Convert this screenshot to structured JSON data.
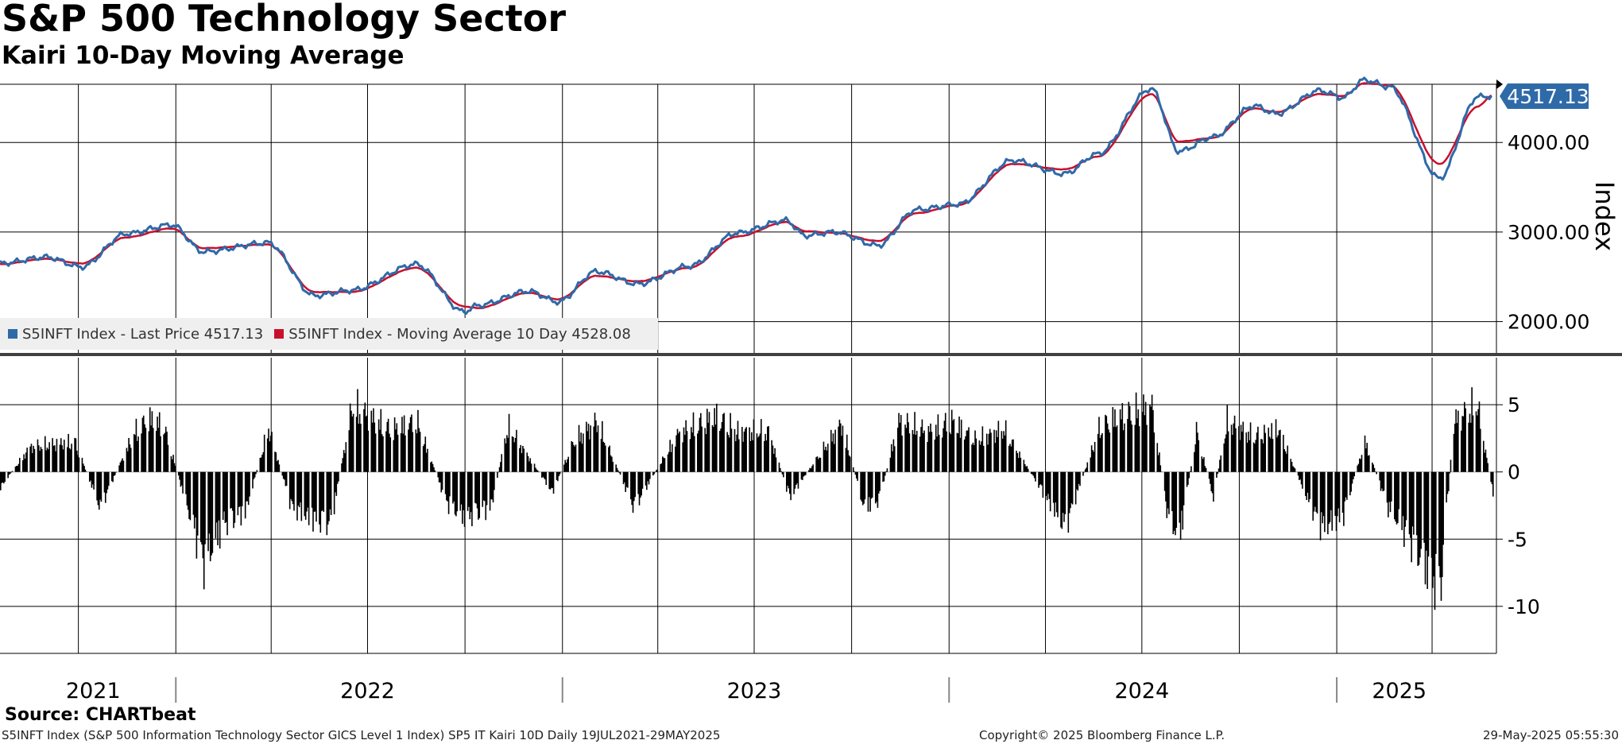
{
  "header": {
    "title": "S&P 500 Technology Sector",
    "subtitle": "Kairi 10-Day Moving Average"
  },
  "legend": {
    "items": [
      {
        "label": "S5INFT Index - Last Price 4517.13",
        "color": "#2f6aa8"
      },
      {
        "label": "S5INFT Index - Moving Average 10 Day 4528.08",
        "color": "#c8102e"
      }
    ]
  },
  "footer": {
    "source": "Source: CHARTbeat",
    "description": "S5INFT Index (S&P 500 Information Technology Sector GICS Level 1 Index) SP5 IT Kairi 10D  Daily 19JUL2021-29MAY2025",
    "copyright": "Copyright© 2025 Bloomberg Finance L.P.",
    "timestamp": "29-May-2025 05:55:30"
  },
  "colors": {
    "price_line": "#2f6aa8",
    "ma_line": "#c8102e",
    "kairi_bars": "#000000",
    "last_price_badge": "#2f6aa8"
  },
  "chart_data": [
    {
      "type": "line",
      "title": "",
      "ylabel": "Index",
      "ylim": [
        1650,
        4650
      ],
      "yticks": [
        2000,
        3000,
        4000
      ],
      "ytick_labels": [
        "2000.00",
        "3000.00",
        "4000.00"
      ],
      "last_price_label": "4517.13",
      "x_labels": [
        "2021",
        "2022",
        "2023",
        "2024",
        "2025"
      ],
      "grid": true,
      "legend_position": "bottom-left",
      "series": [
        {
          "name": "S5INFT Index - Last Price 4517.13",
          "x": [
            "2021-07-19",
            "2021-09-01",
            "2021-10-04",
            "2021-11-15",
            "2021-12-28",
            "2022-01-27",
            "2022-03-29",
            "2022-05-12",
            "2022-06-16",
            "2022-08-16",
            "2022-09-30",
            "2022-10-13",
            "2022-11-30",
            "2022-12-28",
            "2023-02-02",
            "2023-03-13",
            "2023-05-01",
            "2023-06-15",
            "2023-07-31",
            "2023-08-18",
            "2023-09-15",
            "2023-10-26",
            "2023-12-01",
            "2024-01-10",
            "2024-03-01",
            "2024-04-19",
            "2024-05-20",
            "2024-07-10",
            "2024-08-05",
            "2024-09-06",
            "2024-10-15",
            "2024-11-05",
            "2024-12-16",
            "2025-01-07",
            "2025-01-27",
            "2025-02-20",
            "2025-04-08",
            "2025-05-14",
            "2025-05-28"
          ],
          "y": [
            2650,
            2720,
            2610,
            2980,
            3080,
            2780,
            2880,
            2290,
            2350,
            2640,
            2110,
            2180,
            2340,
            2220,
            2560,
            2420,
            2620,
            2990,
            3130,
            2960,
            3000,
            2850,
            3250,
            3310,
            3800,
            3650,
            3870,
            4600,
            3900,
            4060,
            4410,
            4320,
            4580,
            4500,
            4700,
            4620,
            3600,
            4510,
            4517
          ]
        },
        {
          "name": "S5INFT Index - Moving Average 10 Day 4528.08",
          "x": [
            "2021-07-19",
            "2021-09-01",
            "2021-10-04",
            "2021-11-15",
            "2021-12-28",
            "2022-01-27",
            "2022-03-29",
            "2022-05-12",
            "2022-06-16",
            "2022-08-16",
            "2022-09-30",
            "2022-10-13",
            "2022-11-30",
            "2022-12-28",
            "2023-02-02",
            "2023-03-13",
            "2023-05-01",
            "2023-06-15",
            "2023-07-31",
            "2023-08-18",
            "2023-09-15",
            "2023-10-26",
            "2023-12-01",
            "2024-01-10",
            "2024-03-01",
            "2024-04-19",
            "2024-05-20",
            "2024-07-10",
            "2024-08-05",
            "2024-09-06",
            "2024-10-15",
            "2024-11-05",
            "2024-12-16",
            "2025-01-07",
            "2025-01-27",
            "2025-02-20",
            "2025-04-08",
            "2025-05-14",
            "2025-05-28"
          ],
          "y": [
            2640,
            2700,
            2650,
            2940,
            3040,
            2820,
            2860,
            2330,
            2330,
            2600,
            2170,
            2150,
            2320,
            2250,
            2510,
            2450,
            2600,
            2950,
            3110,
            3010,
            2990,
            2900,
            3210,
            3300,
            3760,
            3700,
            3840,
            4540,
            4010,
            4050,
            4380,
            4340,
            4540,
            4520,
            4660,
            4640,
            3760,
            4400,
            4528
          ]
        }
      ]
    },
    {
      "type": "bar",
      "title": "",
      "ylabel": "",
      "ylim": [
        -13.5,
        8.5
      ],
      "yticks": [
        -10,
        -5,
        0,
        5
      ],
      "ytick_labels": [
        "-10",
        "-5",
        "0",
        "5"
      ],
      "grid": true,
      "series": [
        {
          "name": "",
          "x": [
            "2021-07-19",
            "2021-08-16",
            "2021-09-27",
            "2021-10-21",
            "2021-11-22",
            "2021-12-06",
            "2021-12-20",
            "2022-01-27",
            "2022-02-16",
            "2022-03-07",
            "2022-03-29",
            "2022-04-20",
            "2022-05-11",
            "2022-05-27",
            "2022-06-16",
            "2022-07-22",
            "2022-08-16",
            "2022-09-13",
            "2022-09-30",
            "2022-10-25",
            "2022-11-10",
            "2022-12-22",
            "2023-01-12",
            "2023-02-02",
            "2023-03-09",
            "2023-04-20",
            "2023-05-25",
            "2023-06-15",
            "2023-07-14",
            "2023-08-03",
            "2023-09-21",
            "2023-10-12",
            "2023-10-26",
            "2023-11-14",
            "2023-12-12",
            "2024-01-04",
            "2024-01-25",
            "2024-02-21",
            "2024-04-19",
            "2024-05-22",
            "2024-06-05",
            "2024-07-10",
            "2024-07-25",
            "2024-08-05",
            "2024-08-21",
            "2024-09-06",
            "2024-09-19",
            "2024-10-15",
            "2024-11-06",
            "2024-12-05",
            "2024-12-18",
            "2025-01-06",
            "2025-01-27",
            "2025-02-18",
            "2025-03-10",
            "2025-04-08",
            "2025-04-21",
            "2025-05-13",
            "2025-05-28"
          ],
          "values": [
            -1.5,
            2.5,
            3.0,
            -3.5,
            3.8,
            5.3,
            4.5,
            -9.0,
            -5.0,
            -4.0,
            4.3,
            -3.5,
            -4.8,
            -5.0,
            6.5,
            4.2,
            5.0,
            -3.0,
            -4.5,
            -3.5,
            4.5,
            -2.0,
            3.2,
            5.0,
            -3.5,
            3.8,
            5.5,
            4.0,
            4.0,
            -2.5,
            4.8,
            -3.5,
            -2.8,
            5.0,
            4.0,
            5.0,
            3.2,
            4.2,
            -5.5,
            4.5,
            5.3,
            6.5,
            -4.3,
            -6.5,
            4.0,
            -2.5,
            5.0,
            3.5,
            4.3,
            -3.0,
            -5.5,
            -4.5,
            3.0,
            -3.5,
            -6.5,
            -11.8,
            5.0,
            6.7,
            -2.2
          ]
        }
      ]
    }
  ]
}
